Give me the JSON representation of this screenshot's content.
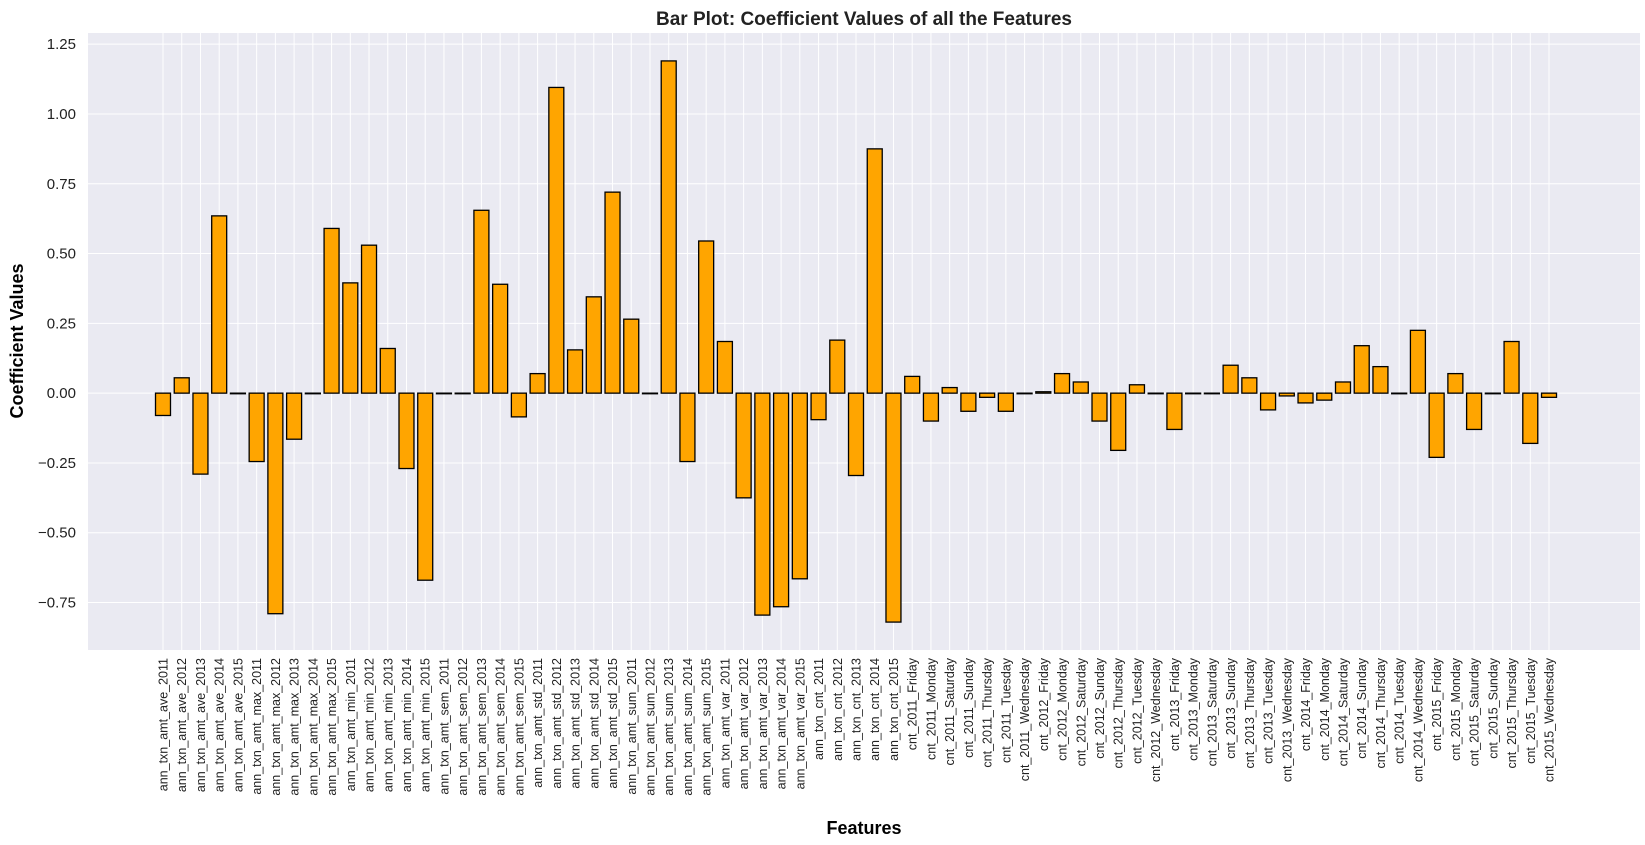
{
  "chart_data": {
    "type": "bar",
    "title": "Bar Plot: Coefficient Values of all the Features",
    "xlabel": "Features",
    "ylabel": "Coefficient Values",
    "ylim": [
      -0.92,
      1.29
    ],
    "yticks": [
      -0.75,
      -0.5,
      -0.25,
      0.0,
      0.25,
      0.5,
      0.75,
      1.0,
      1.25
    ],
    "ytick_labels": [
      "−0.75",
      "−0.50",
      "−0.25",
      "0.00",
      "0.25",
      "0.50",
      "0.75",
      "1.00",
      "1.25"
    ],
    "grid": true,
    "bar_color": "#FFA500",
    "edge_color": "#000000",
    "background_color": "#EAEAF2",
    "categories": [
      "ann_txn_amt_ave_2011",
      "ann_txn_amt_ave_2012",
      "ann_txn_amt_ave_2013",
      "ann_txn_amt_ave_2014",
      "ann_txn_amt_ave_2015",
      "ann_txn_amt_max_2011",
      "ann_txn_amt_max_2012",
      "ann_txn_amt_max_2013",
      "ann_txn_amt_max_2014",
      "ann_txn_amt_max_2015",
      "ann_txn_amt_min_2011",
      "ann_txn_amt_min_2012",
      "ann_txn_amt_min_2013",
      "ann_txn_amt_min_2014",
      "ann_txn_amt_min_2015",
      "ann_txn_amt_sem_2011",
      "ann_txn_amt_sem_2012",
      "ann_txn_amt_sem_2013",
      "ann_txn_amt_sem_2014",
      "ann_txn_amt_sem_2015",
      "ann_txn_amt_std_2011",
      "ann_txn_amt_std_2012",
      "ann_txn_amt_std_2013",
      "ann_txn_amt_std_2014",
      "ann_txn_amt_std_2015",
      "ann_txn_amt_sum_2011",
      "ann_txn_amt_sum_2012",
      "ann_txn_amt_sum_2013",
      "ann_txn_amt_sum_2014",
      "ann_txn_amt_sum_2015",
      "ann_txn_amt_var_2011",
      "ann_txn_amt_var_2012",
      "ann_txn_amt_var_2013",
      "ann_txn_amt_var_2014",
      "ann_txn_amt_var_2015",
      "ann_txn_cnt_2011",
      "ann_txn_cnt_2012",
      "ann_txn_cnt_2013",
      "ann_txn_cnt_2014",
      "ann_txn_cnt_2015",
      "cnt_2011_Friday",
      "cnt_2011_Monday",
      "cnt_2011_Saturday",
      "cnt_2011_Sunday",
      "cnt_2011_Thursday",
      "cnt_2011_Tuesday",
      "cnt_2011_Wednesday",
      "cnt_2012_Friday",
      "cnt_2012_Monday",
      "cnt_2012_Saturday",
      "cnt_2012_Sunday",
      "cnt_2012_Thursday",
      "cnt_2012_Tuesday",
      "cnt_2012_Wednesday",
      "cnt_2013_Friday",
      "cnt_2013_Monday",
      "cnt_2013_Saturday",
      "cnt_2013_Sunday",
      "cnt_2013_Thursday",
      "cnt_2013_Tuesday",
      "cnt_2013_Wednesday",
      "cnt_2014_Friday",
      "cnt_2014_Monday",
      "cnt_2014_Saturday",
      "cnt_2014_Sunday",
      "cnt_2014_Thursday",
      "cnt_2014_Tuesday",
      "cnt_2014_Wednesday",
      "cnt_2015_Friday",
      "cnt_2015_Monday",
      "cnt_2015_Saturday",
      "cnt_2015_Sunday",
      "cnt_2015_Thursday",
      "cnt_2015_Tuesday",
      "cnt_2015_Wednesday"
    ],
    "values": [
      -0.08,
      0.055,
      -0.29,
      0.635,
      0.0,
      -0.245,
      -0.79,
      -0.165,
      0.0,
      0.59,
      0.395,
      0.53,
      0.16,
      -0.27,
      -0.67,
      0.0,
      0.0,
      0.655,
      0.39,
      -0.085,
      0.07,
      1.095,
      0.155,
      0.345,
      0.72,
      0.265,
      0.0,
      1.19,
      -0.245,
      0.545,
      0.185,
      -0.375,
      -0.795,
      -0.765,
      -0.665,
      -0.095,
      0.19,
      -0.295,
      0.875,
      -0.82,
      0.06,
      -0.1,
      0.02,
      -0.065,
      -0.015,
      -0.065,
      0.0,
      0.005,
      0.07,
      0.04,
      -0.1,
      -0.205,
      0.03,
      0.0,
      -0.13,
      0.0,
      0.0,
      0.1,
      0.055,
      -0.06,
      -0.01,
      -0.035,
      -0.025,
      0.04,
      0.17,
      0.095,
      0.0,
      0.225,
      -0.23,
      0.07,
      -0.13,
      0.0,
      0.185,
      -0.18,
      -0.015
    ]
  }
}
